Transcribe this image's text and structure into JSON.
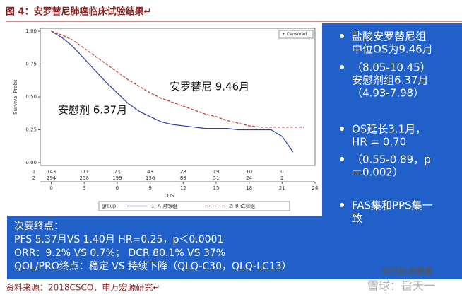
{
  "header": {
    "title": "图 4：安罗替尼肺癌临床试验结果↵"
  },
  "chart_data": {
    "type": "line",
    "y_label": "Survival Probs",
    "x_label": "OS",
    "x": [
      0,
      1,
      2,
      3,
      4,
      5,
      6,
      7,
      8,
      9,
      10,
      11,
      12,
      13,
      14,
      15,
      16,
      17,
      18,
      19,
      20,
      21,
      22,
      23
    ],
    "series": [
      {
        "name": "1: A 对照组",
        "color": "#2b3fa8",
        "style": "solid",
        "values": [
          1.0,
          0.95,
          0.88,
          0.79,
          0.7,
          0.61,
          0.53,
          0.45,
          0.39,
          0.35,
          0.31,
          0.29,
          0.28,
          0.27,
          0.26,
          0.26,
          0.26,
          0.25,
          0.25,
          0.25,
          0.25,
          0.2,
          0.08,
          null
        ]
      },
      {
        "name": "2: B 试验组",
        "color": "#c0392b",
        "style": "dashed",
        "values": [
          1.0,
          0.97,
          0.93,
          0.87,
          0.81,
          0.75,
          0.69,
          0.63,
          0.58,
          0.53,
          0.49,
          0.46,
          0.43,
          0.4,
          0.37,
          0.35,
          0.32,
          0.3,
          0.28,
          0.27,
          0.27,
          0.27,
          0.27,
          0.27
        ]
      }
    ],
    "xlim": [
      -1,
      24
    ],
    "xticks": [
      0,
      3,
      6,
      9,
      12,
      15,
      18,
      21,
      24
    ],
    "ylim": [
      0,
      1
    ],
    "yticks": [
      {
        "value": 0,
        "label": "0.00"
      },
      {
        "value": 0.25,
        "label": "0.25"
      },
      {
        "value": 0.5,
        "label": "0.50"
      },
      {
        "value": 0.75,
        "label": "0.75"
      },
      {
        "value": 1,
        "label": "1.00"
      }
    ],
    "legend_title": "group",
    "censored_label": "+ Censored",
    "annotations": [
      "安罗替尼 9.46月",
      "安慰剂 6.37月"
    ],
    "risk_table": [
      {
        "label": "1",
        "values": [
          143,
          111,
          73,
          43,
          28,
          19,
          10,
          0
        ]
      },
      {
        "label": "2",
        "values": [
          294,
          258,
          199,
          136,
          88,
          51,
          24,
          2
        ]
      }
    ]
  },
  "slide": {
    "bullets": [
      [
        "盐酸安罗替尼组",
        "中位OS为9.46月"
      ],
      [
        "（8.05-10.45）",
        "安慰剂组6.37月",
        "（4.93-7.98）"
      ],
      [
        "OS延长3.1月，",
        "HR = 0.70"
      ],
      [
        "（0.55-0.89，p",
        "＝0.002）"
      ],
      [
        "FAS集和PPS集一",
        "致"
      ]
    ],
    "secondary": [
      "次要终点：",
      "PFS 5.37月VS 1.40月 HR=0.25，p＜0.0001",
      "ORR：9.2% VS 0.7%；  DCR 80.1% VS 37%",
      "QOL/PRO终点：稳定 VS 持续下降（QLQ-C30，QLQ-LC13）"
    ]
  },
  "watermark": [
    "申万投资健康",
    "雪球：旨天一"
  ],
  "footer": {
    "source": "资料来源：2018CSCO，申万宏源研究↵"
  }
}
